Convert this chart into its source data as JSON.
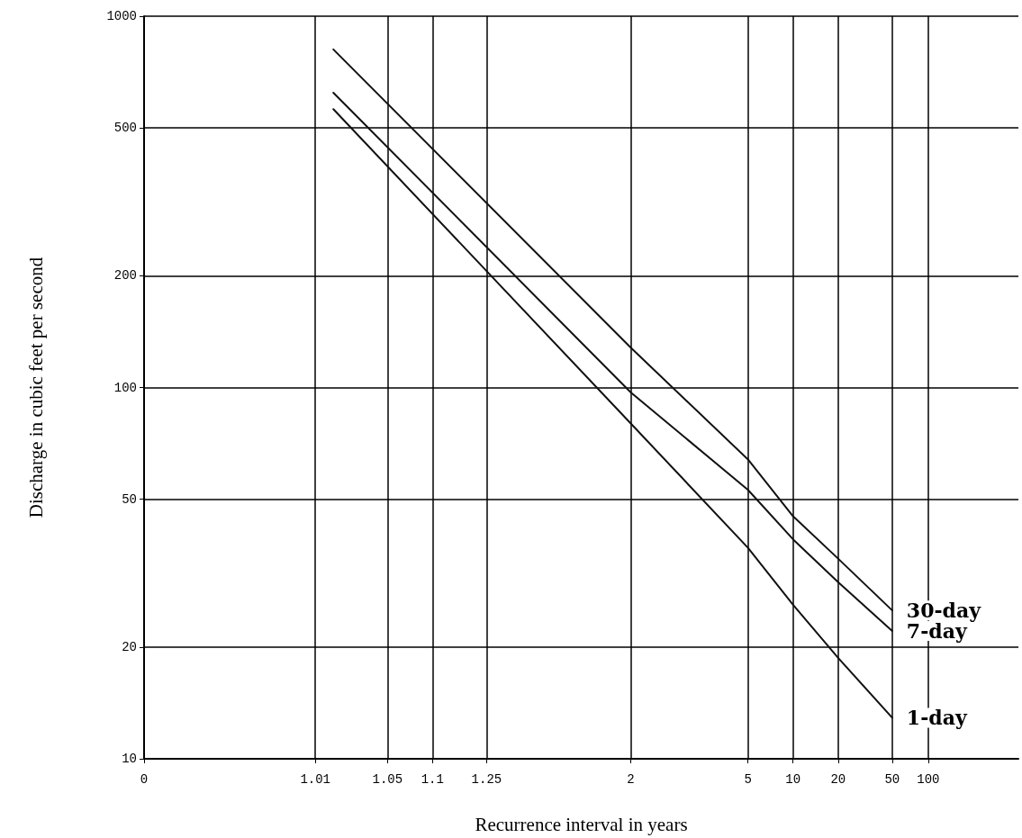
{
  "chart_data": {
    "type": "line",
    "xlabel": "Recurrence interval in years",
    "ylabel": "Discharge in cubic feet per second",
    "categories": [
      "0",
      null,
      null,
      null,
      null,
      null,
      null,
      null,
      null,
      null,
      null,
      null,
      null,
      null,
      null,
      null,
      null,
      null,
      null,
      "1.01",
      null,
      null,
      null,
      null,
      null,
      null,
      null,
      "1.05",
      null,
      null,
      null,
      null,
      "1.1",
      null,
      null,
      null,
      null,
      null,
      "1.25",
      null,
      null,
      null,
      null,
      null,
      null,
      null,
      null,
      null,
      null,
      null,
      null,
      null,
      null,
      null,
      "2",
      null,
      null,
      null,
      null,
      null,
      null,
      null,
      null,
      null,
      null,
      null,
      null,
      "5",
      null,
      null,
      null,
      null,
      "10",
      null,
      null,
      null,
      null,
      "20",
      null,
      null,
      null,
      null,
      null,
      "50",
      null,
      null,
      null,
      "100",
      null,
      null,
      null,
      null,
      null,
      null,
      null,
      null,
      null,
      null
    ],
    "series": [
      {
        "name": "30-day",
        "color": "#111111",
        "values": [
          null,
          null,
          null,
          null,
          null,
          null,
          null,
          null,
          null,
          null,
          null,
          null,
          null,
          null,
          null,
          null,
          null,
          null,
          null,
          null,
          null,
          814,
          null,
          null,
          null,
          null,
          null,
          null,
          null,
          null,
          null,
          null,
          null,
          null,
          null,
          null,
          null,
          null,
          null,
          null,
          null,
          null,
          null,
          null,
          null,
          null,
          null,
          null,
          null,
          null,
          null,
          null,
          null,
          null,
          128,
          null,
          null,
          null,
          null,
          null,
          null,
          null,
          null,
          null,
          null,
          null,
          null,
          64,
          null,
          null,
          null,
          null,
          45,
          null,
          null,
          null,
          null,
          34.6,
          null,
          null,
          null,
          null,
          null,
          25.1,
          null,
          null,
          null,
          null,
          null,
          null,
          null,
          null,
          null,
          null,
          null,
          null,
          null,
          null
        ]
      },
      {
        "name": "7-day",
        "color": "#111111",
        "values": [
          null,
          null,
          null,
          null,
          null,
          null,
          null,
          null,
          null,
          null,
          null,
          null,
          null,
          null,
          null,
          null,
          null,
          null,
          null,
          null,
          null,
          622,
          null,
          null,
          null,
          null,
          null,
          null,
          null,
          null,
          null,
          null,
          null,
          null,
          null,
          null,
          null,
          null,
          null,
          null,
          null,
          null,
          null,
          null,
          null,
          null,
          null,
          null,
          null,
          null,
          null,
          null,
          null,
          null,
          97,
          null,
          null,
          null,
          null,
          null,
          null,
          null,
          null,
          null,
          null,
          null,
          null,
          53,
          null,
          null,
          null,
          null,
          39,
          null,
          null,
          null,
          null,
          29.9,
          null,
          null,
          null,
          null,
          null,
          22.1,
          null,
          null,
          null,
          null,
          null,
          null,
          null,
          null,
          null,
          null,
          null,
          null,
          null,
          null
        ]
      },
      {
        "name": "1-day",
        "color": "#111111",
        "values": [
          null,
          null,
          null,
          null,
          null,
          null,
          null,
          null,
          null,
          null,
          null,
          null,
          null,
          null,
          null,
          null,
          null,
          null,
          null,
          null,
          null,
          562,
          null,
          null,
          null,
          null,
          null,
          null,
          null,
          null,
          null,
          null,
          null,
          null,
          null,
          null,
          null,
          null,
          null,
          null,
          null,
          null,
          null,
          null,
          null,
          null,
          null,
          null,
          null,
          null,
          null,
          null,
          null,
          null,
          80,
          null,
          null,
          null,
          null,
          null,
          null,
          null,
          null,
          null,
          null,
          null,
          null,
          37,
          null,
          null,
          null,
          null,
          26,
          null,
          null,
          null,
          null,
          18.7,
          null,
          null,
          null,
          null,
          null,
          12.9,
          null,
          null,
          null,
          null,
          null,
          null,
          null,
          null,
          null,
          null,
          null,
          null,
          null,
          null
        ]
      }
    ],
    "ylim": [
      10,
      1000
    ],
    "yticks": [
      10,
      20,
      50,
      100,
      200,
      500,
      1000
    ],
    "log": "y",
    "grid": true,
    "legend": false,
    "marker": "none",
    "line_style": "solid"
  }
}
